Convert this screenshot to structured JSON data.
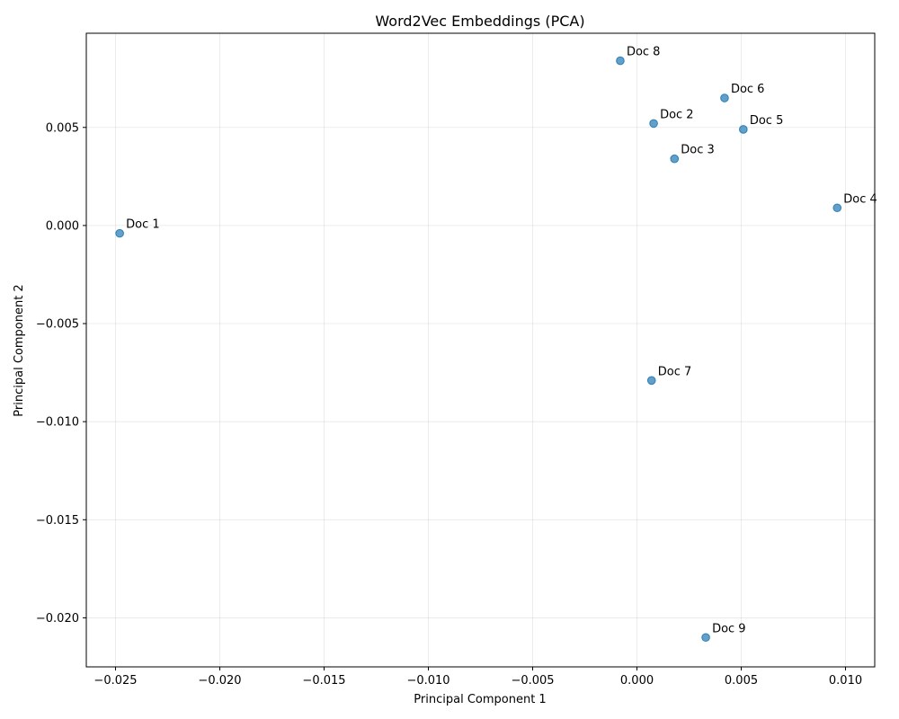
{
  "chart_data": {
    "type": "scatter",
    "title": "Word2Vec Embeddings (PCA)",
    "xlabel": "Principal Component 1",
    "ylabel": "Principal Component 2",
    "xlim": [
      -0.0264,
      0.0114
    ],
    "ylim": [
      -0.0225,
      0.0098
    ],
    "xticks": [
      -0.025,
      -0.02,
      -0.015,
      -0.01,
      -0.005,
      0.0,
      0.005,
      0.01
    ],
    "xtick_labels": [
      "−0.025",
      "−0.020",
      "−0.015",
      "−0.010",
      "−0.005",
      "0.000",
      "0.005",
      "0.010"
    ],
    "yticks": [
      0.005,
      0.0,
      -0.005,
      -0.01,
      -0.015,
      -0.02
    ],
    "ytick_labels": [
      "0.005",
      "0.000",
      "−0.005",
      "−0.010",
      "−0.015",
      "−0.020"
    ],
    "grid": true,
    "points": [
      {
        "label": "Doc 1",
        "x": -0.0248,
        "y": -0.0004
      },
      {
        "label": "Doc 2",
        "x": 0.0008,
        "y": 0.0052
      },
      {
        "label": "Doc 3",
        "x": 0.0018,
        "y": 0.0034
      },
      {
        "label": "Doc 4",
        "x": 0.0096,
        "y": 0.0009
      },
      {
        "label": "Doc 5",
        "x": 0.0051,
        "y": 0.0049
      },
      {
        "label": "Doc 6",
        "x": 0.0042,
        "y": 0.0065
      },
      {
        "label": "Doc 7",
        "x": 0.0007,
        "y": -0.0079
      },
      {
        "label": "Doc 8",
        "x": -0.0008,
        "y": 0.0084
      },
      {
        "label": "Doc 9",
        "x": 0.0033,
        "y": -0.021
      }
    ],
    "color": "#1f77b4"
  }
}
